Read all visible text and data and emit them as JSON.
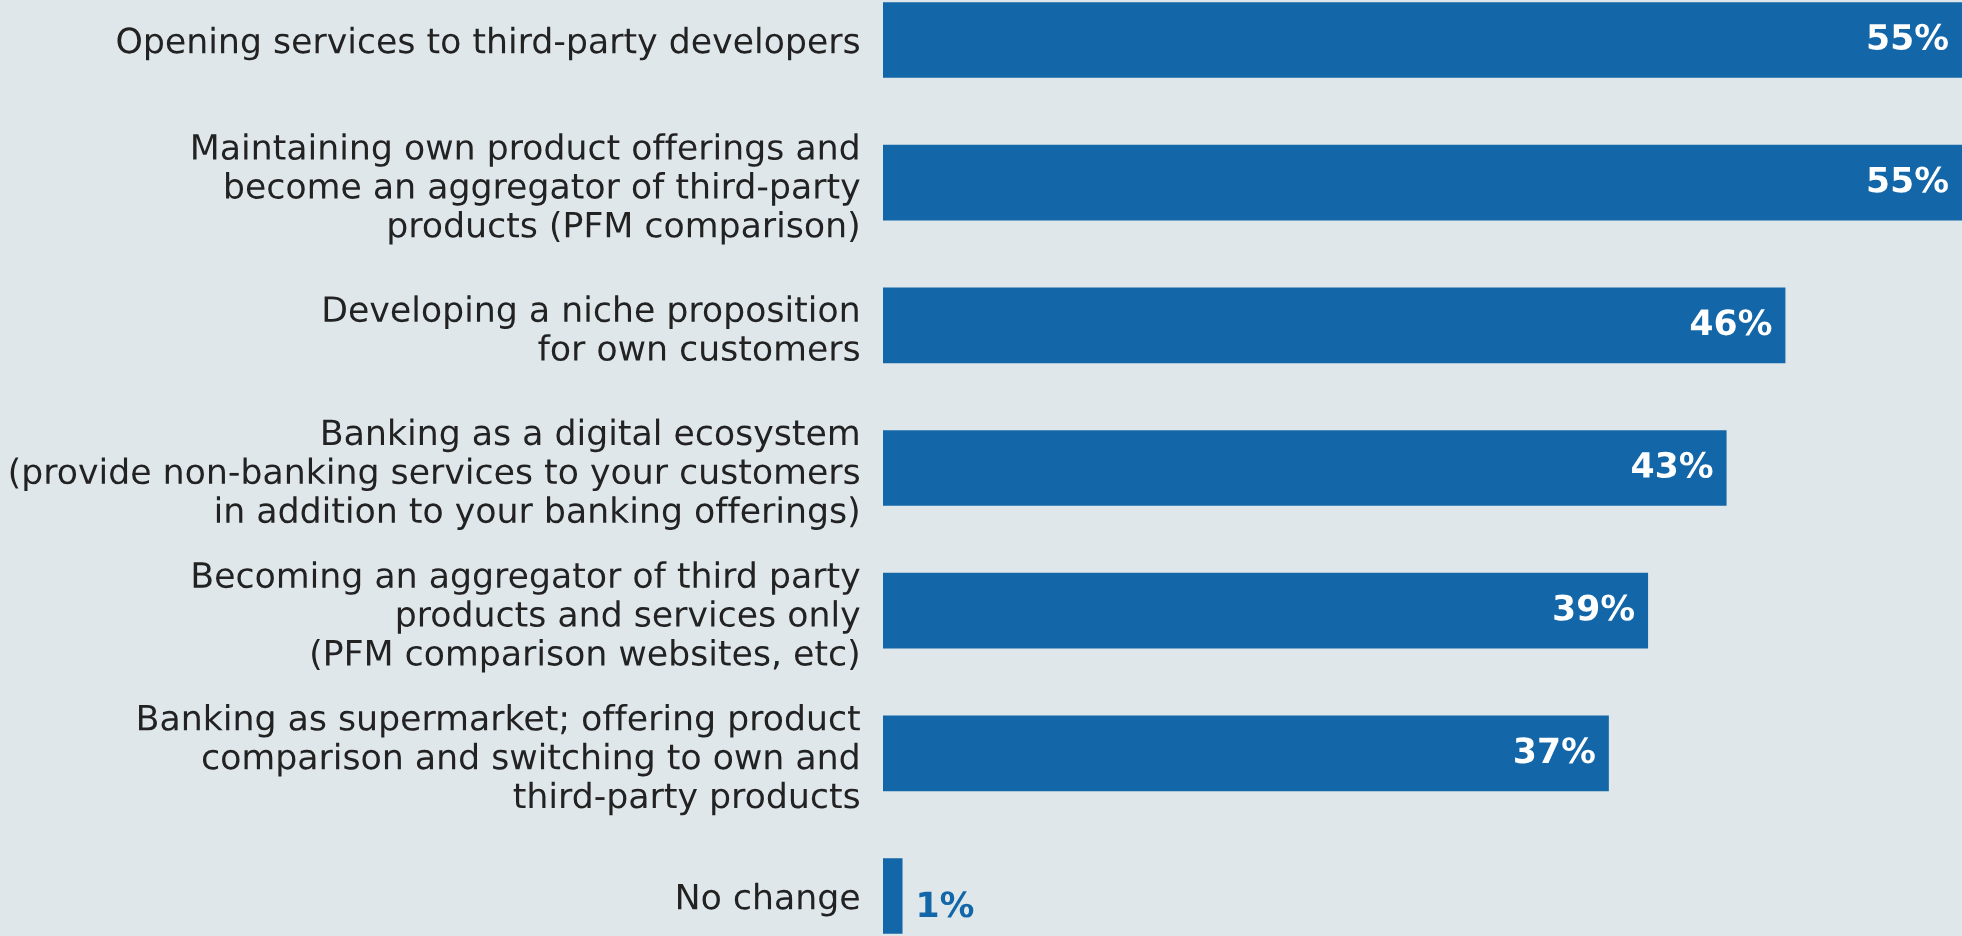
{
  "chart_data": {
    "type": "bar",
    "orientation": "horizontal",
    "categories": [
      "Opening services to third-party developers",
      "Maintaining own product offerings and\nbecome an aggregator of third-party\nproducts (PFM comparison)",
      "Developing a niche proposition\nfor own customers",
      "Banking as a digital ecosystem\n(provide non-banking services to your customers\nin addition to your banking offerings)",
      "Becoming an aggregator of third party\nproducts and services only\n(PFM comparison websites, etc)",
      "Banking as supermarket; offering product\ncomparison and switching to own and\nthird-party products",
      "No change"
    ],
    "values": [
      55,
      55,
      46,
      43,
      39,
      37,
      1
    ],
    "value_labels": [
      "55%",
      "55%",
      "46%",
      "43%",
      "39%",
      "37%",
      "1%"
    ],
    "color": "#1367a8",
    "grid": false,
    "legend": false
  }
}
